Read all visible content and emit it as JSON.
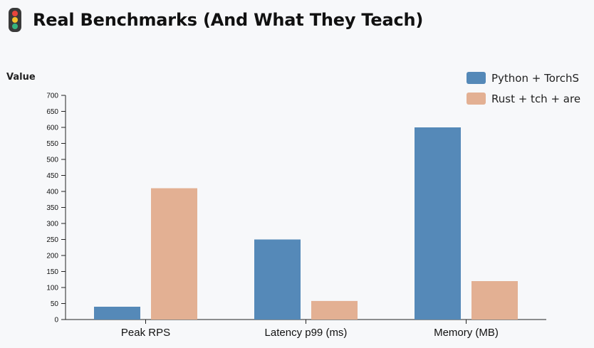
{
  "header": {
    "title": "Real Benchmarks (And What They Teach)",
    "icon": "traffic-light-icon"
  },
  "colors": {
    "series_1": "#5589b8",
    "series_2": "#e3b093",
    "axis": "#222222",
    "background": "#f7f8fa"
  },
  "chart_data": {
    "type": "bar",
    "title": "",
    "xlabel": "",
    "ylabel": "Value",
    "categories": [
      "Peak RPS",
      "Latency p99 (ms)",
      "Memory (MB)"
    ],
    "series": [
      {
        "name": "Python + TorchS",
        "values": [
          40,
          250,
          600
        ]
      },
      {
        "name": "Rust + tch + are",
        "values": [
          410,
          58,
          120
        ]
      }
    ],
    "ylim": [
      0,
      700
    ],
    "yticks": [
      0,
      50,
      100,
      150,
      200,
      250,
      300,
      350,
      400,
      450,
      500,
      550,
      600,
      650,
      700
    ],
    "grid": false,
    "legend_position": "top-right"
  }
}
